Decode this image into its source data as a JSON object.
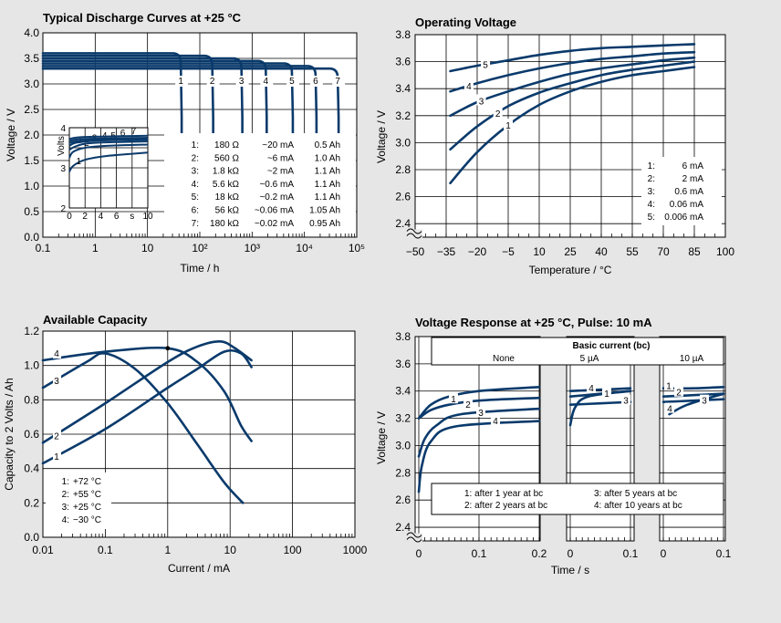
{
  "chart_data": [
    {
      "type": "line",
      "title": "Typical Discharge Curves at +25 °C",
      "xlabel": "Time / h",
      "ylabel": "Voltage / V",
      "xscale": "log",
      "xlim": [
        0.1,
        100000
      ],
      "ylim": [
        0.0,
        4.0
      ],
      "xticks": [
        "0.1",
        "1",
        "10",
        "10²",
        "10³",
        "10⁴",
        "10⁵"
      ],
      "yticks": [
        "0.0",
        "0.5",
        "1.0",
        "1.5",
        "2.0",
        "2.5",
        "3.0",
        "3.5",
        "4.0"
      ],
      "series": [
        {
          "name": "1",
          "plateau_v": 3.6,
          "end_h": 45
        },
        {
          "name": "2",
          "plateau_v": 3.55,
          "end_h": 180
        },
        {
          "name": "3",
          "plateau_v": 3.5,
          "end_h": 650
        },
        {
          "name": "4",
          "plateau_v": 3.45,
          "end_h": 1900
        },
        {
          "name": "5",
          "plateau_v": 3.4,
          "end_h": 6000
        },
        {
          "name": "6",
          "plateau_v": 3.35,
          "end_h": 17000
        },
        {
          "name": "7",
          "plateau_v": 3.3,
          "end_h": 45000
        }
      ],
      "legend": [
        [
          "1:",
          "180 Ω",
          "~20 mA",
          "0.5 Ah"
        ],
        [
          "2:",
          "560 Ω",
          "~6 mA",
          "1.0 Ah"
        ],
        [
          "3:",
          "1.8 kΩ",
          "~2 mA",
          "1.1 Ah"
        ],
        [
          "4:",
          "5.6 kΩ",
          "~0.6 mA",
          "1.1 Ah"
        ],
        [
          "5:",
          "18 kΩ",
          "~0.2 mA",
          "1.1 Ah"
        ],
        [
          "6:",
          "56 kΩ",
          "~0.06 mA",
          "1.05 Ah"
        ],
        [
          "7:",
          "180 kΩ",
          "~0.02 mA",
          "0.95 Ah"
        ]
      ],
      "inset": {
        "ylabel": "Volts",
        "xticks": [
          "0",
          "2",
          "4",
          "6",
          "s",
          "10"
        ],
        "yticks": [
          "2",
          "3",
          "4"
        ],
        "xlim": [
          0,
          10
        ],
        "ylim": [
          2,
          4
        ],
        "series": [
          {
            "name": "1",
            "values": [
              [
                0,
                2.9
              ],
              [
                0.5,
                3.05
              ],
              [
                2,
                3.2
              ],
              [
                5,
                3.3
              ],
              [
                10,
                3.38
              ]
            ]
          },
          {
            "name": "2",
            "values": [
              [
                0,
                3.25
              ],
              [
                0.5,
                3.4
              ],
              [
                2,
                3.5
              ],
              [
                5,
                3.55
              ],
              [
                10,
                3.58
              ]
            ]
          },
          {
            "name": "3",
            "values": [
              [
                0,
                3.45
              ],
              [
                1,
                3.55
              ],
              [
                3,
                3.62
              ],
              [
                10,
                3.66
              ]
            ]
          },
          {
            "name": "4",
            "values": [
              [
                0,
                3.55
              ],
              [
                1,
                3.63
              ],
              [
                4,
                3.68
              ],
              [
                10,
                3.7
              ]
            ]
          },
          {
            "name": "5",
            "values": [
              [
                0,
                3.62
              ],
              [
                2,
                3.68
              ],
              [
                10,
                3.72
              ]
            ]
          },
          {
            "name": "6",
            "values": [
              [
                0,
                3.67
              ],
              [
                2,
                3.72
              ],
              [
                10,
                3.75
              ]
            ]
          },
          {
            "name": "7",
            "values": [
              [
                0,
                3.72
              ],
              [
                2,
                3.77
              ],
              [
                10,
                3.8
              ]
            ]
          }
        ]
      }
    },
    {
      "type": "line",
      "title": "Operating Voltage",
      "xlabel": "Temperature / °C",
      "ylabel": "Voltage / V",
      "xlim": [
        -50,
        100
      ],
      "ylim": [
        2.3,
        3.8
      ],
      "xticks": [
        "−50",
        "−35",
        "−20",
        "−5",
        "10",
        "25",
        "40",
        "55",
        "70",
        "85",
        "100"
      ],
      "yticks": [
        "2.4",
        "2.6",
        "2.8",
        "3.0",
        "3.2",
        "3.4",
        "3.6",
        "3.8"
      ],
      "series": [
        {
          "name": "1",
          "values": [
            [
              -33,
              2.7
            ],
            [
              -20,
              2.93
            ],
            [
              -5,
              3.13
            ],
            [
              10,
              3.28
            ],
            [
              25,
              3.38
            ],
            [
              40,
              3.45
            ],
            [
              55,
              3.5
            ],
            [
              70,
              3.53
            ],
            [
              85,
              3.56
            ]
          ]
        },
        {
          "name": "2",
          "values": [
            [
              -33,
              2.95
            ],
            [
              -20,
              3.12
            ],
            [
              -5,
              3.27
            ],
            [
              10,
              3.37
            ],
            [
              25,
              3.44
            ],
            [
              40,
              3.5
            ],
            [
              55,
              3.54
            ],
            [
              70,
              3.57
            ],
            [
              85,
              3.6
            ]
          ]
        },
        {
          "name": "3",
          "values": [
            [
              -33,
              3.2
            ],
            [
              -20,
              3.3
            ],
            [
              -5,
              3.38
            ],
            [
              10,
              3.45
            ],
            [
              25,
              3.51
            ],
            [
              40,
              3.55
            ],
            [
              55,
              3.58
            ],
            [
              70,
              3.61
            ],
            [
              85,
              3.63
            ]
          ]
        },
        {
          "name": "4",
          "values": [
            [
              -33,
              3.38
            ],
            [
              -20,
              3.44
            ],
            [
              -5,
              3.5
            ],
            [
              10,
              3.55
            ],
            [
              25,
              3.59
            ],
            [
              40,
              3.62
            ],
            [
              55,
              3.64
            ],
            [
              70,
              3.66
            ],
            [
              85,
              3.67
            ]
          ]
        },
        {
          "name": "5",
          "values": [
            [
              -33,
              3.53
            ],
            [
              -20,
              3.57
            ],
            [
              -5,
              3.61
            ],
            [
              10,
              3.65
            ],
            [
              25,
              3.68
            ],
            [
              40,
              3.7
            ],
            [
              55,
              3.71
            ],
            [
              70,
              3.72
            ],
            [
              85,
              3.73
            ]
          ]
        }
      ],
      "legend": [
        [
          "1:",
          "6 mA"
        ],
        [
          "2:",
          "2 mA"
        ],
        [
          "3:",
          "0.6 mA"
        ],
        [
          "4:",
          "0.06 mA"
        ],
        [
          "5:",
          "0.006 mA"
        ]
      ]
    },
    {
      "type": "line",
      "title": "Available Capacity",
      "xlabel": "Current / mA",
      "ylabel": "Capacity to 2 Volts / Ah",
      "xscale": "log",
      "xlim": [
        0.01,
        1000
      ],
      "ylim": [
        0.0,
        1.2
      ],
      "xticks": [
        "0.01",
        "0.1",
        "1",
        "10",
        "100",
        "1000"
      ],
      "yticks": [
        "0.0",
        "0.2",
        "0.4",
        "0.6",
        "0.8",
        "1.0",
        "1.2"
      ],
      "series": [
        {
          "name": "1",
          "values": [
            [
              0.01,
              0.43
            ],
            [
              0.1,
              0.63
            ],
            [
              1,
              0.87
            ],
            [
              3,
              0.98
            ],
            [
              8,
              1.08
            ],
            [
              15,
              1.07
            ],
            [
              22,
              0.99
            ]
          ]
        },
        {
          "name": "2",
          "values": [
            [
              0.01,
              0.55
            ],
            [
              0.1,
              0.78
            ],
            [
              1,
              1.02
            ],
            [
              3,
              1.11
            ],
            [
              7,
              1.14
            ],
            [
              12,
              1.1
            ],
            [
              22,
              1.03
            ]
          ]
        },
        {
          "name": "3",
          "values": [
            [
              0.01,
              0.87
            ],
            [
              0.05,
              1.02
            ],
            [
              0.1,
              1.07
            ],
            [
              0.3,
              0.98
            ],
            [
              1,
              0.78
            ],
            [
              3,
              0.54
            ],
            [
              8,
              0.32
            ],
            [
              16,
              0.2
            ]
          ]
        },
        {
          "name": "4",
          "values": [
            [
              0.01,
              1.03
            ],
            [
              0.1,
              1.08
            ],
            [
              1,
              1.1
            ],
            [
              3,
              1.02
            ],
            [
              8,
              0.85
            ],
            [
              15,
              0.65
            ],
            [
              22,
              0.56
            ]
          ]
        }
      ],
      "legend": [
        [
          "1:",
          "+72 °C"
        ],
        [
          "2:",
          "+55 °C"
        ],
        [
          "3:",
          "+25 °C"
        ],
        [
          "4:",
          "−30 °C"
        ]
      ]
    },
    {
      "type": "line",
      "title": "Voltage Response at +25 °C, Pulse: 10 mA",
      "xlabel": "Time / s",
      "ylabel": "Voltage / V",
      "ylim": [
        2.3,
        3.8
      ],
      "yticks": [
        "2.4",
        "2.6",
        "2.8",
        "3.0",
        "3.2",
        "3.4",
        "3.6",
        "3.8"
      ],
      "header": "Basic current (bc)",
      "panels": [
        {
          "label": "None",
          "xticks": [
            "0",
            "0.1",
            "0.2"
          ],
          "xlim": [
            0,
            0.2
          ]
        },
        {
          "label": "5 µA",
          "xticks": [
            "0",
            "0.1"
          ],
          "xlim": [
            0,
            0.1
          ]
        },
        {
          "label": "10 µA",
          "xticks": [
            "0",
            "0.1"
          ],
          "xlim": [
            0,
            0.1
          ]
        }
      ],
      "series": [
        {
          "name": "1",
          "p1": [
            [
              0,
              3.2
            ],
            [
              0.02,
              3.3
            ],
            [
              0.05,
              3.36
            ],
            [
              0.1,
              3.4
            ],
            [
              0.2,
              3.43
            ]
          ],
          "p2": [
            [
              0,
              3.4
            ],
            [
              0.05,
              3.41
            ],
            [
              0.1,
              3.42
            ]
          ],
          "p3": [
            [
              0,
              3.42
            ],
            [
              0.05,
              3.42
            ],
            [
              0.1,
              3.43
            ]
          ]
        },
        {
          "name": "2",
          "p1": [
            [
              0,
              3.2
            ],
            [
              0.02,
              3.26
            ],
            [
              0.05,
              3.3
            ],
            [
              0.1,
              3.33
            ],
            [
              0.2,
              3.35
            ]
          ],
          "p2": [
            [
              0,
              3.36
            ],
            [
              0.05,
              3.38
            ],
            [
              0.1,
              3.4
            ]
          ],
          "p3": [
            [
              0,
              3.36
            ],
            [
              0.05,
              3.37
            ],
            [
              0.1,
              3.38
            ]
          ]
        },
        {
          "name": "3",
          "p1": [
            [
              0,
              2.92
            ],
            [
              0.01,
              3.05
            ],
            [
              0.03,
              3.15
            ],
            [
              0.07,
              3.23
            ],
            [
              0.2,
              3.27
            ]
          ],
          "p2": [
            [
              0,
              3.3
            ],
            [
              0.05,
              3.31
            ],
            [
              0.1,
              3.32
            ]
          ],
          "p3": [
            [
              0,
              3.32
            ],
            [
              0.05,
              3.33
            ],
            [
              0.1,
              3.34
            ]
          ]
        },
        {
          "name": "4",
          "p1": [
            [
              0,
              2.66
            ],
            [
              0.005,
              2.85
            ],
            [
              0.02,
              3.03
            ],
            [
              0.06,
              3.14
            ],
            [
              0.2,
              3.18
            ]
          ],
          "p2": [
            [
              0,
              3.15
            ],
            [
              0.008,
              3.28
            ],
            [
              0.03,
              3.36
            ],
            [
              0.1,
              3.4
            ]
          ],
          "p3": [
            [
              0.01,
              3.23
            ],
            [
              0.04,
              3.3
            ],
            [
              0.1,
              3.38
            ]
          ]
        }
      ],
      "legend": [
        [
          "1: after 1 year at bc",
          "3: after 5 years at bc"
        ],
        [
          "2: after 2 years at bc",
          "4: after 10 years at bc"
        ]
      ]
    }
  ]
}
